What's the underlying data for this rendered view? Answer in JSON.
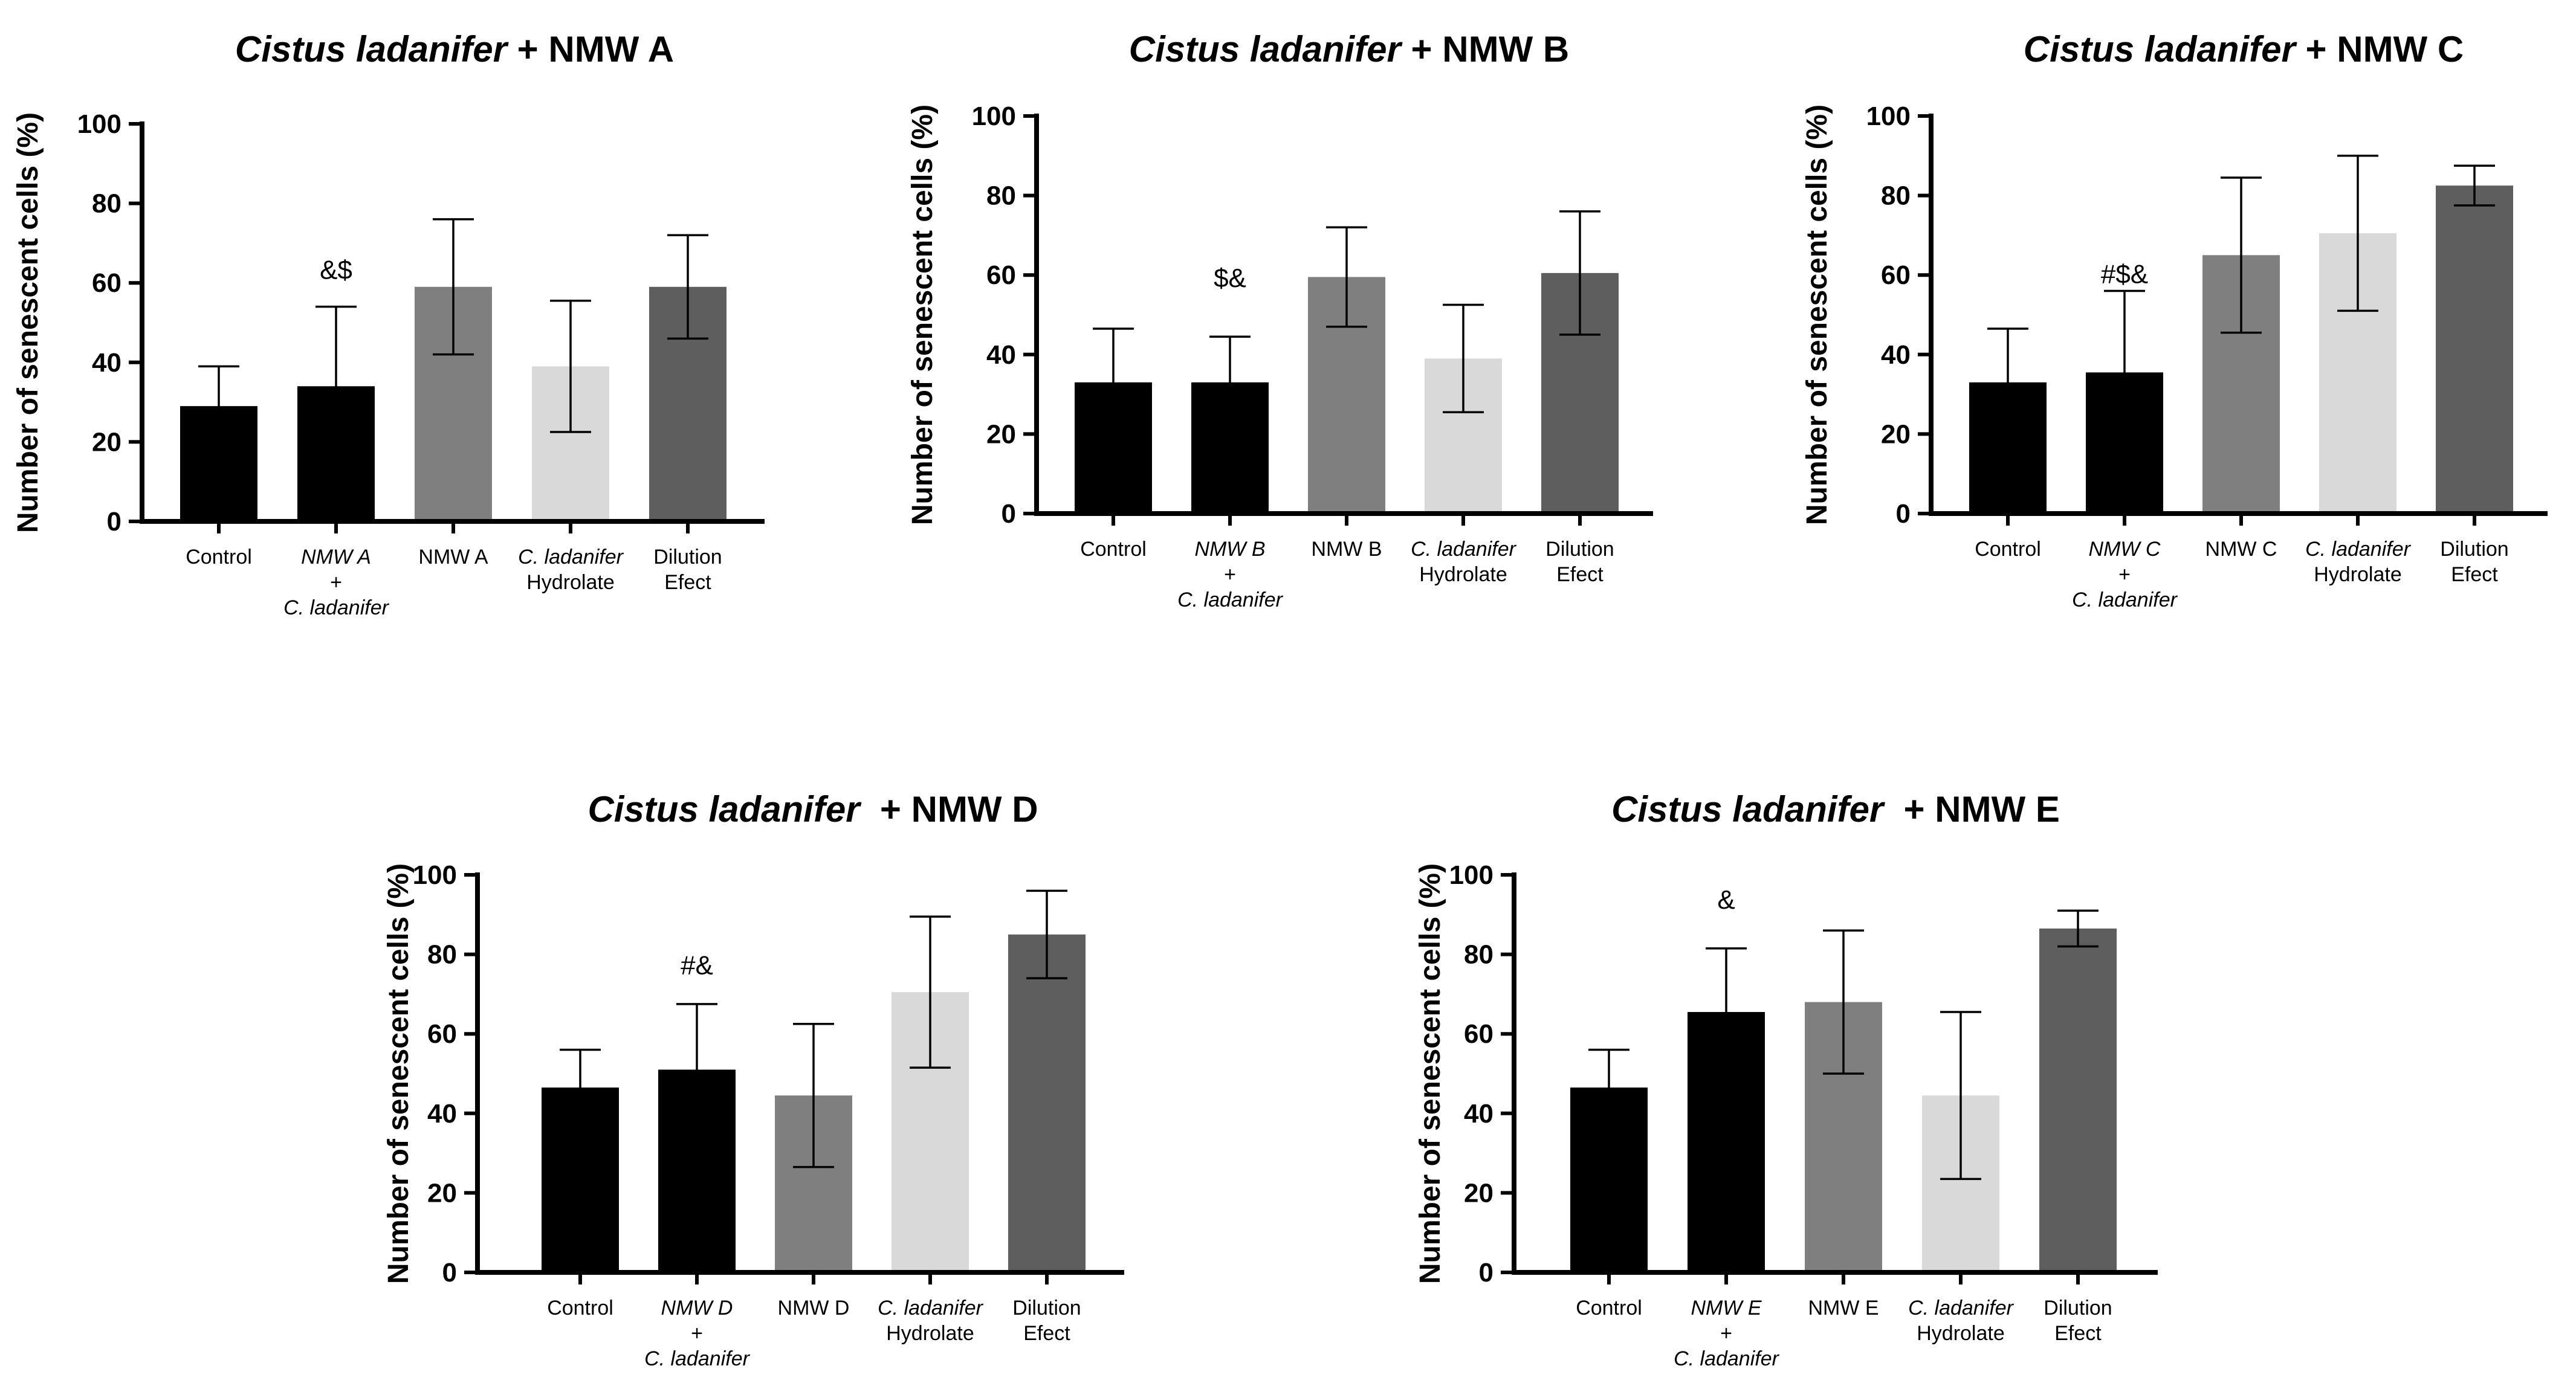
{
  "chart_data": [
    {
      "type": "bar",
      "title": {
        "italic": "Cistus ladanifer",
        "rest": " + NMW A"
      },
      "ylabel": "Number of senescent cells (%)",
      "xlabel": "",
      "ylim": [
        0,
        100
      ],
      "yticks": [
        "0",
        "20",
        "40",
        "60",
        "80",
        "100"
      ],
      "categories": [
        {
          "lines": [
            "Control"
          ],
          "italic": [
            false
          ]
        },
        {
          "lines": [
            "NMW A",
            "+",
            "C. ladanifer"
          ],
          "italic": [
            true,
            false,
            true
          ]
        },
        {
          "lines": [
            "NMW A"
          ],
          "italic": [
            false
          ]
        },
        {
          "lines": [
            "C. ladanifer",
            "Hydrolate"
          ],
          "italic": [
            true,
            false
          ]
        },
        {
          "lines": [
            "Dilution",
            "Efect"
          ],
          "italic": [
            false,
            false
          ]
        }
      ],
      "values": [
        29,
        34,
        59,
        39,
        59
      ],
      "errors": [
        10,
        20,
        17,
        16.5,
        13
      ],
      "colors": [
        "#000000",
        "#000000",
        "#7f7f7f",
        "#d9d9d9",
        "#5e5e5e"
      ],
      "annotations": [
        {
          "index": 1,
          "text": "&$",
          "value": 61
        }
      ]
    },
    {
      "type": "bar",
      "title": {
        "italic": "Cistus ladanifer",
        "rest": " + NMW B"
      },
      "ylabel": "Number of senescent cells (%)",
      "xlabel": "",
      "ylim": [
        0,
        100
      ],
      "yticks": [
        "0",
        "20",
        "40",
        "60",
        "80",
        "100"
      ],
      "categories": [
        {
          "lines": [
            "Control"
          ],
          "italic": [
            false
          ]
        },
        {
          "lines": [
            "NMW B",
            "+",
            "C. ladanifer"
          ],
          "italic": [
            true,
            false,
            true
          ]
        },
        {
          "lines": [
            "NMW B"
          ],
          "italic": [
            false
          ]
        },
        {
          "lines": [
            "C. ladanifer",
            "Hydrolate"
          ],
          "italic": [
            true,
            false
          ]
        },
        {
          "lines": [
            "Dilution",
            "Efect"
          ],
          "italic": [
            false,
            false
          ]
        }
      ],
      "values": [
        33,
        33,
        59.5,
        39,
        60.5
      ],
      "errors": [
        13.5,
        11.5,
        12.5,
        13.5,
        15.5
      ],
      "colors": [
        "#000000",
        "#000000",
        "#7f7f7f",
        "#d9d9d9",
        "#5e5e5e"
      ],
      "annotations": [
        {
          "index": 1,
          "text": "$&",
          "value": 57
        }
      ]
    },
    {
      "type": "bar",
      "title": {
        "italic": "Cistus ladanifer",
        "rest": " + NMW C"
      },
      "ylabel": "Number of senescent cells (%)",
      "xlabel": "",
      "ylim": [
        0,
        100
      ],
      "yticks": [
        "0",
        "20",
        "40",
        "60",
        "80",
        "100"
      ],
      "categories": [
        {
          "lines": [
            "Control"
          ],
          "italic": [
            false
          ]
        },
        {
          "lines": [
            "NMW C",
            "+",
            "C. ladanifer"
          ],
          "italic": [
            true,
            false,
            true
          ]
        },
        {
          "lines": [
            "NMW C"
          ],
          "italic": [
            false
          ]
        },
        {
          "lines": [
            "C. ladanifer",
            "Hydrolate"
          ],
          "italic": [
            true,
            false
          ]
        },
        {
          "lines": [
            "Dilution",
            "Efect"
          ],
          "italic": [
            false,
            false
          ]
        }
      ],
      "values": [
        33,
        35.5,
        65,
        70.5,
        82.5
      ],
      "errors": [
        13.5,
        20.5,
        19.5,
        19.5,
        5
      ],
      "colors": [
        "#000000",
        "#000000",
        "#7f7f7f",
        "#d9d9d9",
        "#5e5e5e"
      ],
      "annotations": [
        {
          "index": 1,
          "text": "#$&",
          "value": 58
        }
      ]
    },
    {
      "type": "bar",
      "title": {
        "italic": "Cistus ladanifer",
        "rest": "  + NMW D"
      },
      "ylabel": "Number of senescent cells (%)",
      "xlabel": "",
      "ylim": [
        0,
        100
      ],
      "yticks": [
        "0",
        "20",
        "40",
        "60",
        "80",
        "100"
      ],
      "categories": [
        {
          "lines": [
            "Control"
          ],
          "italic": [
            false
          ]
        },
        {
          "lines": [
            "NMW D",
            "+",
            "C. ladanifer"
          ],
          "italic": [
            true,
            false,
            true
          ]
        },
        {
          "lines": [
            "NMW D"
          ],
          "italic": [
            false
          ]
        },
        {
          "lines": [
            "C. ladanifer",
            "Hydrolate"
          ],
          "italic": [
            true,
            false
          ]
        },
        {
          "lines": [
            "Dilution",
            "Efect"
          ],
          "italic": [
            false,
            false
          ]
        }
      ],
      "values": [
        46.5,
        51,
        44.5,
        70.5,
        85
      ],
      "errors": [
        9.5,
        16.5,
        18,
        19,
        11
      ],
      "colors": [
        "#000000",
        "#000000",
        "#7f7f7f",
        "#d9d9d9",
        "#5e5e5e"
      ],
      "annotations": [
        {
          "index": 1,
          "text": "#&",
          "value": 75
        }
      ]
    },
    {
      "type": "bar",
      "title": {
        "italic": "Cistus ladanifer",
        "rest": "  + NMW E"
      },
      "ylabel": "Number of senescent cells (%)",
      "xlabel": "",
      "ylim": [
        0,
        100
      ],
      "yticks": [
        "0",
        "20",
        "40",
        "60",
        "80",
        "100"
      ],
      "categories": [
        {
          "lines": [
            "Control"
          ],
          "italic": [
            false
          ]
        },
        {
          "lines": [
            "NMW E",
            "+",
            "C. ladanifer"
          ],
          "italic": [
            true,
            false,
            true
          ]
        },
        {
          "lines": [
            "NMW E"
          ],
          "italic": [
            false
          ]
        },
        {
          "lines": [
            "C. ladanifer",
            "Hydrolate"
          ],
          "italic": [
            true,
            false
          ]
        },
        {
          "lines": [
            "Dilution",
            "Efect"
          ],
          "italic": [
            false,
            false
          ]
        }
      ],
      "values": [
        46.5,
        65.5,
        68,
        44.5,
        86.5
      ],
      "errors": [
        9.5,
        16,
        18,
        21,
        4.5
      ],
      "colors": [
        "#000000",
        "#000000",
        "#7f7f7f",
        "#d9d9d9",
        "#5e5e5e"
      ],
      "annotations": [
        {
          "index": 1,
          "text": "&",
          "value": 91.5
        }
      ]
    }
  ]
}
